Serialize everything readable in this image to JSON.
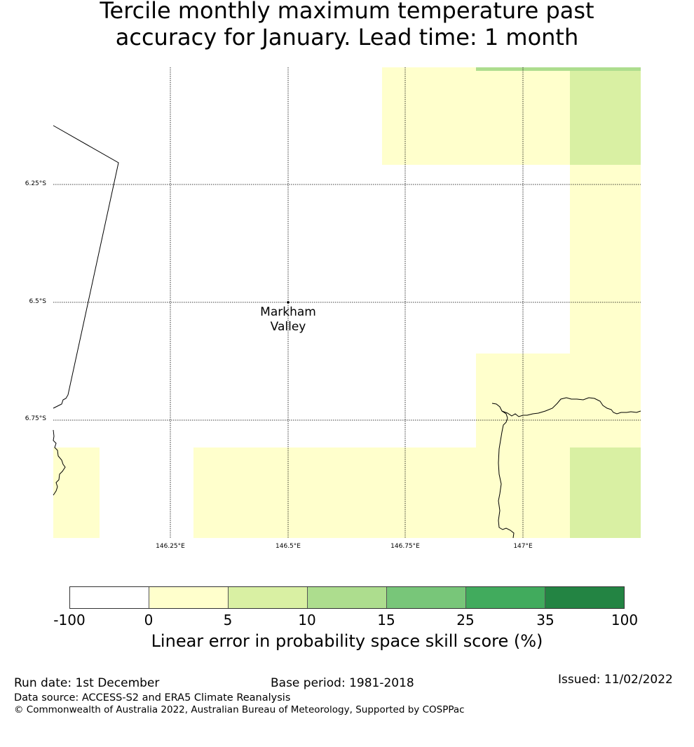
{
  "title": {
    "line1": "Tercile monthly maximum temperature past",
    "line2": "accuracy for January. Lead time: 1 month"
  },
  "map": {
    "lat_labels": [
      "6.25°S",
      "6.5°S",
      "6.75°S"
    ],
    "lon_labels": [
      "146.25°E",
      "146.5°E",
      "146.75°E",
      "147°E"
    ],
    "place": {
      "name_line1": "Markham",
      "name_line2": "Valley"
    },
    "colors": {
      "white": "#ffffff",
      "pale_yellow": "#ffffcc",
      "light_green": "#d9f0a3",
      "green": "#addd8e"
    }
  },
  "colorbar": {
    "ticks": [
      "-100",
      "0",
      "5",
      "10",
      "15",
      "25",
      "35",
      "100"
    ],
    "colors": [
      "#ffffff",
      "#ffffcc",
      "#d9f0a3",
      "#addd8e",
      "#78c679",
      "#41ab5d",
      "#238443"
    ],
    "label": "Linear error in probability space skill score (%)"
  },
  "footer": {
    "run_date": "Run date: 1st December",
    "base_period": "Base period: 1981-2018",
    "issued": "Issued: 11/02/2022",
    "data_source": "Data source: ACCESS-S2 and ERA5 Climate Reanalysis",
    "copyright": "© Commonwealth of Australia 2022, Australian Bureau of Meteorology, Supported by COSPPac"
  }
}
